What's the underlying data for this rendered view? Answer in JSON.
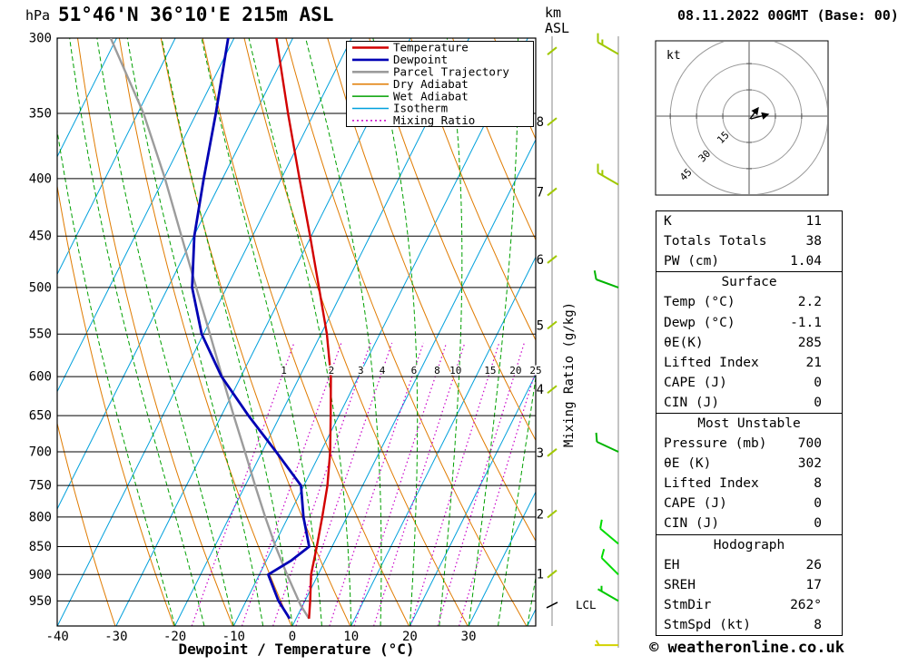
{
  "header": {
    "station": "51°46'N 36°10'E 215m ASL",
    "datetime": "08.11.2022 00GMT (Base: 00)",
    "pressure_unit": "hPa",
    "altitude_unit_1": "km",
    "altitude_unit_2": "ASL"
  },
  "axes": {
    "xlabel": "Dewpoint / Temperature (°C)",
    "right_label": "Mixing Ratio (g/kg)",
    "lcl_label": "LCL"
  },
  "legend": [
    {
      "label": "Temperature",
      "color": "#d20000",
      "style": "solid"
    },
    {
      "label": "Dewpoint",
      "color": "#0000b4",
      "style": "solid"
    },
    {
      "label": "Parcel Trajectory",
      "color": "#9c9c9c",
      "style": "solid"
    },
    {
      "label": "Dry Adiabat",
      "color": "#e07b00",
      "style": "solid"
    },
    {
      "label": "Wet Adiabat",
      "color": "#00a000",
      "style": "solid"
    },
    {
      "label": "Isotherm",
      "color": "#00a0dc",
      "style": "solid"
    },
    {
      "label": "Mixing Ratio",
      "color": "#c800c8",
      "style": "dotted"
    }
  ],
  "chart_data": {
    "type": "skewt-log-p",
    "title": "51°46'N 36°10'E 215m ASL",
    "datetime": "08.11.2022 00GMT (Base: 00)",
    "pressure_axis": {
      "unit": "hPa",
      "scale": "log",
      "range": [
        300,
        1000
      ],
      "ticks": [
        300,
        350,
        400,
        450,
        500,
        550,
        600,
        650,
        700,
        750,
        800,
        850,
        900,
        950
      ]
    },
    "temperature_axis": {
      "unit": "°C",
      "ticks": [
        -40,
        -30,
        -20,
        -10,
        0,
        10,
        20,
        30
      ]
    },
    "altitude_axis": {
      "unit": "km ASL",
      "ticks": [
        1,
        2,
        3,
        4,
        5,
        6,
        7,
        8
      ],
      "lcl_pressure_hpa": 958
    },
    "mixing_ratio_lines": [
      1,
      2,
      3,
      4,
      6,
      8,
      10,
      15,
      20,
      25
    ],
    "profiles": {
      "temperature": {
        "label": "Temperature",
        "color": "#d20000",
        "points_p_t": [
          [
            985,
            2.2
          ],
          [
            950,
            0.9
          ],
          [
            900,
            -1.2
          ],
          [
            850,
            -2.6
          ],
          [
            800,
            -4.2
          ],
          [
            750,
            -6.0
          ],
          [
            700,
            -8.4
          ],
          [
            650,
            -11.4
          ],
          [
            600,
            -14.7
          ],
          [
            550,
            -19.0
          ],
          [
            500,
            -24.3
          ],
          [
            450,
            -30.2
          ],
          [
            400,
            -36.9
          ],
          [
            350,
            -44.4
          ],
          [
            300,
            -52.8
          ]
        ]
      },
      "dewpoint": {
        "label": "Dewpoint",
        "color": "#0000b4",
        "points_p_t": [
          [
            985,
            -1.1
          ],
          [
            950,
            -4.5
          ],
          [
            900,
            -8.5
          ],
          [
            875,
            -5.8
          ],
          [
            850,
            -3.9
          ],
          [
            800,
            -7.4
          ],
          [
            750,
            -10.5
          ],
          [
            700,
            -17.6
          ],
          [
            650,
            -25.4
          ],
          [
            600,
            -33.3
          ],
          [
            550,
            -40.3
          ],
          [
            500,
            -45.9
          ],
          [
            450,
            -49.9
          ],
          [
            400,
            -53.2
          ],
          [
            350,
            -56.7
          ],
          [
            300,
            -61.0
          ]
        ]
      },
      "parcel": {
        "label": "Parcel Trajectory",
        "color": "#9c9c9c",
        "points_p_t": [
          [
            985,
            2.2
          ],
          [
            958,
            -0.4
          ],
          [
            900,
            -5.3
          ],
          [
            850,
            -9.6
          ],
          [
            800,
            -13.9
          ],
          [
            750,
            -18.3
          ],
          [
            700,
            -22.9
          ],
          [
            650,
            -27.9
          ],
          [
            600,
            -33.2
          ],
          [
            550,
            -38.9
          ],
          [
            500,
            -45.2
          ],
          [
            450,
            -52.1
          ],
          [
            400,
            -59.8
          ],
          [
            350,
            -69.0
          ],
          [
            300,
            -81.0
          ]
        ]
      }
    },
    "winds": [
      {
        "p": 310,
        "dir": 300,
        "spd": 15,
        "color": "#a0c800"
      },
      {
        "p": 405,
        "dir": 300,
        "spd": 15,
        "color": "#a0c800"
      },
      {
        "p": 500,
        "dir": 290,
        "spd": 10,
        "color": "#00b400"
      },
      {
        "p": 700,
        "dir": 295,
        "spd": 10,
        "color": "#00b400"
      },
      {
        "p": 845,
        "dir": 310,
        "spd": 10,
        "color": "#00dc00"
      },
      {
        "p": 900,
        "dir": 315,
        "spd": 10,
        "color": "#00dc00"
      },
      {
        "p": 950,
        "dir": 300,
        "spd": 5,
        "color": "#00c800"
      },
      {
        "p": 1040,
        "dir": 270,
        "spd": 5,
        "color": "#d2d200"
      }
    ]
  },
  "hodograph": {
    "unit": "kt",
    "rings_kt": [
      15,
      30,
      45
    ]
  },
  "stats": {
    "sections": [
      {
        "header": null,
        "rows": [
          [
            "K",
            "11"
          ],
          [
            "Totals Totals",
            "38"
          ],
          [
            "PW (cm)",
            "1.04"
          ]
        ]
      },
      {
        "header": "Surface",
        "rows": [
          [
            "Temp (°C)",
            "2.2"
          ],
          [
            "Dewp (°C)",
            "-1.1"
          ],
          [
            "θE(K)",
            "285"
          ],
          [
            "Lifted Index",
            "21"
          ],
          [
            "CAPE (J)",
            "0"
          ],
          [
            "CIN (J)",
            "0"
          ]
        ]
      },
      {
        "header": "Most Unstable",
        "rows": [
          [
            "Pressure (mb)",
            "700"
          ],
          [
            "θE (K)",
            "302"
          ],
          [
            "Lifted Index",
            "8"
          ],
          [
            "CAPE (J)",
            "0"
          ],
          [
            "CIN (J)",
            "0"
          ]
        ]
      },
      {
        "header": "Hodograph",
        "rows": [
          [
            "EH",
            "26"
          ],
          [
            "SREH",
            "17"
          ],
          [
            "StmDir",
            "262°"
          ],
          [
            "StmSpd (kt)",
            "8"
          ]
        ]
      }
    ]
  },
  "footer": {
    "copyright": "© weatheronline.co.uk"
  }
}
